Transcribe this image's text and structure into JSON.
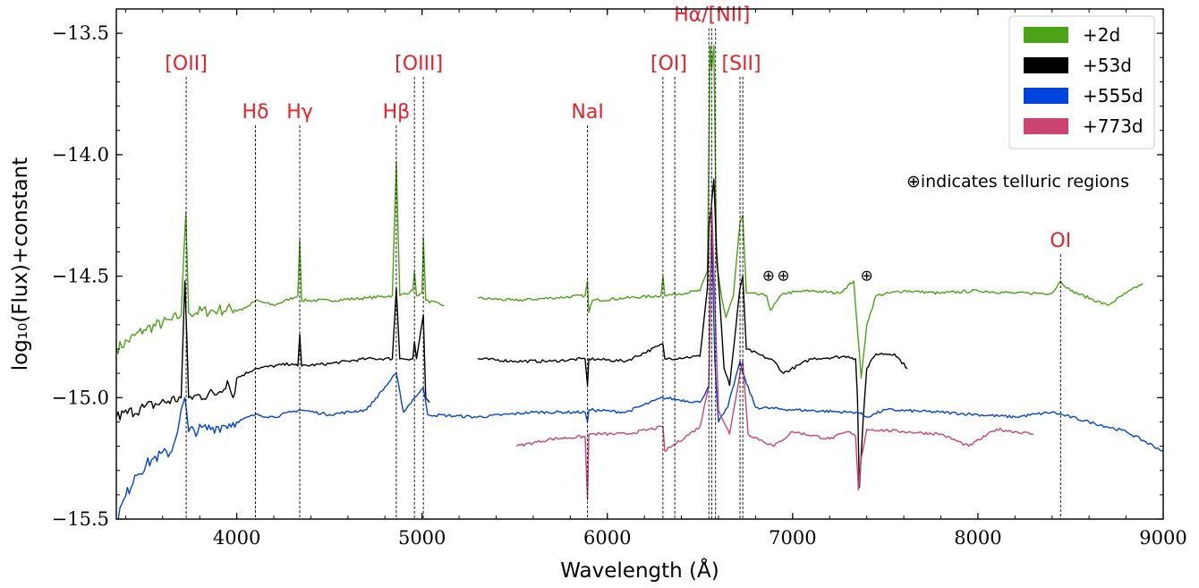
{
  "chart_data": {
    "type": "line",
    "xlabel": "Wavelength (Å)",
    "ylabel": "log₁₀(Flux)+constant",
    "xlim": [
      3350,
      9000
    ],
    "ylim": [
      -15.5,
      -13.4
    ],
    "x_ticks": [
      4000,
      5000,
      6000,
      7000,
      8000,
      9000
    ],
    "x_tick_labels": [
      "4000",
      "5000",
      "6000",
      "7000",
      "8000",
      "9000"
    ],
    "y_ticks": [
      -15.5,
      -15.0,
      -14.5,
      -14.0,
      -13.5
    ],
    "y_tick_labels": [
      "−15.5",
      "−15.0",
      "−14.5",
      "−14.0",
      "−13.5"
    ],
    "grid": false,
    "legend_position": "top-right",
    "note": "⊕indicates telluric regions",
    "telluric_symbol": "⊕",
    "telluric_marks": [
      6870,
      6950,
      7400
    ],
    "line_labels": [
      {
        "label": "[OII]",
        "lines": [
          3727
        ],
        "label_y": -13.65
      },
      {
        "label": "Hδ",
        "lines": [
          4101
        ],
        "label_y": -13.85
      },
      {
        "label": "Hγ",
        "lines": [
          4340
        ],
        "label_y": -13.85
      },
      {
        "label": "Hβ",
        "lines": [
          4861
        ],
        "label_y": -13.85
      },
      {
        "label": "[OIII]",
        "lines": [
          4959,
          5007
        ],
        "label_y": -13.65
      },
      {
        "label": "NaI",
        "lines": [
          5893
        ],
        "label_y": -13.85
      },
      {
        "label": "[OI]",
        "lines": [
          6300,
          6364
        ],
        "label_y": -13.65
      },
      {
        "label": "Hα/[NII]",
        "lines": [
          6548,
          6563,
          6584
        ],
        "label_y": -13.45
      },
      {
        "label": "[SII]",
        "lines": [
          6716,
          6731
        ],
        "label_y": -13.65
      },
      {
        "label": "OI",
        "lines": [
          8446
        ],
        "label_y": -14.38
      }
    ],
    "series": [
      {
        "name": "+2d",
        "color": "#4ba317",
        "points": [
          [
            3350,
            -14.8
          ],
          [
            3500,
            -14.72
          ],
          [
            3650,
            -14.68
          ],
          [
            3700,
            -14.66
          ],
          [
            3725,
            -14.24
          ],
          [
            3740,
            -14.65
          ],
          [
            3900,
            -14.64
          ],
          [
            4050,
            -14.63
          ],
          [
            4101,
            -14.6
          ],
          [
            4200,
            -14.62
          ],
          [
            4330,
            -14.58
          ],
          [
            4340,
            -14.35
          ],
          [
            4350,
            -14.6
          ],
          [
            4500,
            -14.6
          ],
          [
            4700,
            -14.59
          ],
          [
            4840,
            -14.58
          ],
          [
            4861,
            -14.03
          ],
          [
            4880,
            -14.58
          ],
          [
            4950,
            -14.56
          ],
          [
            4959,
            -14.48
          ],
          [
            4970,
            -14.58
          ],
          [
            5000,
            -14.57
          ],
          [
            5007,
            -14.34
          ],
          [
            5020,
            -14.6
          ],
          [
            5120,
            -14.62
          ],
          null,
          [
            5300,
            -14.59
          ],
          [
            5500,
            -14.6
          ],
          [
            5700,
            -14.59
          ],
          [
            5880,
            -14.58
          ],
          [
            5893,
            -14.52
          ],
          [
            5900,
            -14.65
          ],
          [
            5920,
            -14.6
          ],
          [
            6100,
            -14.59
          ],
          [
            6290,
            -14.58
          ],
          [
            6300,
            -14.5
          ],
          [
            6310,
            -14.58
          ],
          [
            6500,
            -14.56
          ],
          [
            6540,
            -14.48
          ],
          [
            6555,
            -13.55
          ],
          [
            6563,
            -13.65
          ],
          [
            6575,
            -13.55
          ],
          [
            6590,
            -14.45
          ],
          [
            6620,
            -14.6
          ],
          [
            6640,
            -14.67
          ],
          [
            6680,
            -14.58
          ],
          [
            6716,
            -14.28
          ],
          [
            6731,
            -14.25
          ],
          [
            6750,
            -14.57
          ],
          [
            6860,
            -14.58
          ],
          [
            6880,
            -14.64
          ],
          [
            6950,
            -14.57
          ],
          [
            7100,
            -14.56
          ],
          [
            7250,
            -14.57
          ],
          [
            7330,
            -14.52
          ],
          [
            7350,
            -14.72
          ],
          [
            7370,
            -14.92
          ],
          [
            7400,
            -14.7
          ],
          [
            7450,
            -14.58
          ],
          [
            7600,
            -14.56
          ],
          [
            7800,
            -14.57
          ],
          [
            8000,
            -14.56
          ],
          [
            8200,
            -14.57
          ],
          [
            8400,
            -14.57
          ],
          [
            8446,
            -14.52
          ],
          [
            8500,
            -14.56
          ],
          [
            8700,
            -14.62
          ],
          [
            8800,
            -14.57
          ],
          [
            8890,
            -14.53
          ]
        ]
      },
      {
        "name": "+53d",
        "color": "#000000",
        "points": [
          [
            3350,
            -15.08
          ],
          [
            3500,
            -15.04
          ],
          [
            3700,
            -15.0
          ],
          [
            3720,
            -14.52
          ],
          [
            3740,
            -15.0
          ],
          [
            3900,
            -14.98
          ],
          [
            3950,
            -14.93
          ],
          [
            3980,
            -15.0
          ],
          [
            4000,
            -14.92
          ],
          [
            4100,
            -14.88
          ],
          [
            4300,
            -14.86
          ],
          [
            4330,
            -14.87
          ],
          [
            4340,
            -14.74
          ],
          [
            4350,
            -14.87
          ],
          [
            4500,
            -14.86
          ],
          [
            4700,
            -14.84
          ],
          [
            4840,
            -14.84
          ],
          [
            4861,
            -14.55
          ],
          [
            4880,
            -14.84
          ],
          [
            4950,
            -14.84
          ],
          [
            4959,
            -14.77
          ],
          [
            4970,
            -14.84
          ],
          [
            5007,
            -14.66
          ],
          [
            5020,
            -15.0
          ],
          [
            5040,
            -15.02
          ],
          null,
          [
            5300,
            -14.84
          ],
          [
            5500,
            -14.85
          ],
          [
            5700,
            -14.85
          ],
          [
            5880,
            -14.84
          ],
          [
            5893,
            -14.95
          ],
          [
            5900,
            -14.84
          ],
          [
            6100,
            -14.85
          ],
          [
            6300,
            -14.78
          ],
          [
            6310,
            -14.84
          ],
          [
            6500,
            -14.83
          ],
          [
            6540,
            -14.55
          ],
          [
            6548,
            -14.3
          ],
          [
            6560,
            -14.22
          ],
          [
            6575,
            -14.1
          ],
          [
            6590,
            -14.4
          ],
          [
            6630,
            -14.88
          ],
          [
            6660,
            -14.95
          ],
          [
            6716,
            -14.55
          ],
          [
            6731,
            -14.5
          ],
          [
            6750,
            -14.8
          ],
          [
            6900,
            -14.85
          ],
          [
            6950,
            -14.9
          ],
          [
            7100,
            -14.84
          ],
          [
            7300,
            -14.83
          ],
          [
            7340,
            -14.84
          ],
          [
            7350,
            -15.0
          ],
          [
            7360,
            -15.37
          ],
          [
            7380,
            -15.1
          ],
          [
            7400,
            -14.88
          ],
          [
            7450,
            -14.82
          ],
          [
            7550,
            -14.82
          ],
          [
            7620,
            -14.88
          ]
        ]
      },
      {
        "name": "+555d",
        "color": "#0044dd",
        "points": [
          [
            3350,
            -15.5
          ],
          [
            3450,
            -15.32
          ],
          [
            3550,
            -15.25
          ],
          [
            3650,
            -15.22
          ],
          [
            3720,
            -15.0
          ],
          [
            3740,
            -15.14
          ],
          [
            3900,
            -15.12
          ],
          [
            4000,
            -15.1
          ],
          [
            4101,
            -15.07
          ],
          [
            4200,
            -15.08
          ],
          [
            4340,
            -15.05
          ],
          [
            4500,
            -15.07
          ],
          [
            4700,
            -15.05
          ],
          [
            4861,
            -14.9
          ],
          [
            4900,
            -15.06
          ],
          [
            4959,
            -15.0
          ],
          [
            5007,
            -14.96
          ],
          [
            5030,
            -15.07
          ],
          [
            5300,
            -15.08
          ],
          [
            5600,
            -15.06
          ],
          [
            5880,
            -15.06
          ],
          [
            5893,
            -15.1
          ],
          [
            5900,
            -15.05
          ],
          [
            6100,
            -15.06
          ],
          [
            6300,
            -15.0
          ],
          [
            6500,
            -15.02
          ],
          [
            6548,
            -14.95
          ],
          [
            6563,
            -14.3
          ],
          [
            6580,
            -14.85
          ],
          [
            6600,
            -15.1
          ],
          [
            6650,
            -15.04
          ],
          [
            6716,
            -14.85
          ],
          [
            6731,
            -14.9
          ],
          [
            6800,
            -15.04
          ],
          [
            7000,
            -15.05
          ],
          [
            7300,
            -15.06
          ],
          [
            7350,
            -15.06
          ],
          [
            7400,
            -15.08
          ],
          [
            7500,
            -15.05
          ],
          [
            7800,
            -15.06
          ],
          [
            8000,
            -15.07
          ],
          [
            8200,
            -15.08
          ],
          [
            8400,
            -15.06
          ],
          [
            8600,
            -15.1
          ],
          [
            8800,
            -15.14
          ],
          [
            9000,
            -15.22
          ]
        ]
      },
      {
        "name": "+773d",
        "color": "#cc4470",
        "points": [
          [
            5510,
            -15.2
          ],
          [
            5700,
            -15.17
          ],
          [
            5880,
            -15.16
          ],
          [
            5893,
            -15.42
          ],
          [
            5900,
            -15.15
          ],
          [
            6100,
            -15.15
          ],
          [
            6300,
            -15.12
          ],
          [
            6310,
            -15.22
          ],
          [
            6500,
            -15.12
          ],
          [
            6548,
            -14.95
          ],
          [
            6563,
            -14.2
          ],
          [
            6580,
            -14.6
          ],
          [
            6600,
            -15.05
          ],
          [
            6660,
            -15.15
          ],
          [
            6716,
            -14.9
          ],
          [
            6731,
            -14.85
          ],
          [
            6760,
            -15.15
          ],
          [
            6900,
            -15.2
          ],
          [
            7000,
            -15.14
          ],
          [
            7200,
            -15.17
          ],
          [
            7300,
            -15.14
          ],
          [
            7340,
            -15.16
          ],
          [
            7355,
            -15.38
          ],
          [
            7370,
            -15.25
          ],
          [
            7400,
            -15.13
          ],
          [
            7600,
            -15.14
          ],
          [
            7800,
            -15.15
          ],
          [
            7950,
            -15.2
          ],
          [
            8100,
            -15.13
          ],
          [
            8300,
            -15.15
          ]
        ]
      }
    ]
  }
}
